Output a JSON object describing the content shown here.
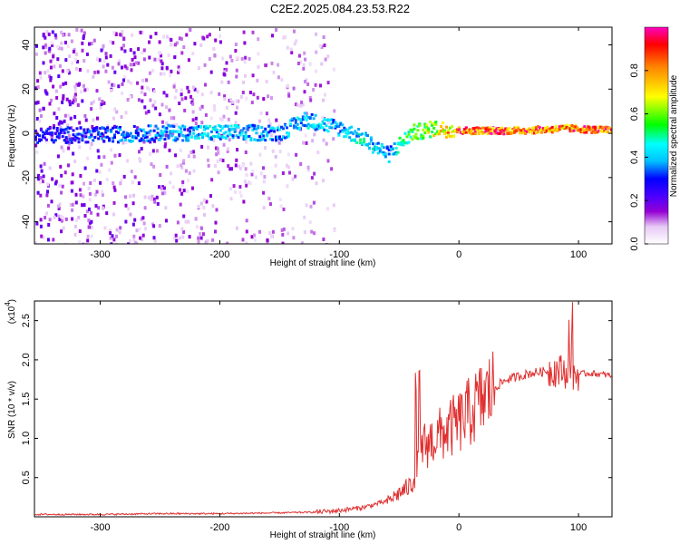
{
  "title": "C2E2.2025.084.23.53.R22",
  "colors": {
    "snr_line": "#e03030",
    "axis": "#000000",
    "background": "#ffffff"
  },
  "chart_data": [
    {
      "type": "heatmap",
      "xlabel": "Height of straight line (km)",
      "ylabel": "Frequency (Hz)",
      "xlim": [
        -355,
        128
      ],
      "ylim": [
        -50,
        48
      ],
      "xticks": [
        -300,
        -200,
        -100,
        0,
        100
      ],
      "yticks": [
        -40,
        -20,
        0,
        20,
        40
      ],
      "colorbar": {
        "label": "Normalized spectral amplitude",
        "ticks": [
          "0.0",
          "0.2",
          "0.4",
          "0.6",
          "0.8"
        ],
        "range": [
          0,
          1
        ]
      },
      "band": [
        {
          "x": -340,
          "freq": -1,
          "amp": 0.3
        },
        {
          "x": -300,
          "freq": -1,
          "amp": 0.35
        },
        {
          "x": -250,
          "freq": 0,
          "amp": 0.4
        },
        {
          "x": -200,
          "freq": 0,
          "amp": 0.45
        },
        {
          "x": -150,
          "freq": 0,
          "amp": 0.4
        },
        {
          "x": -130,
          "freq": 6,
          "amp": 0.45
        },
        {
          "x": -100,
          "freq": 2,
          "amp": 0.4
        },
        {
          "x": -80,
          "freq": -3,
          "amp": 0.5
        },
        {
          "x": -60,
          "freq": -10,
          "amp": 0.4
        },
        {
          "x": -40,
          "freq": 0,
          "amp": 0.6
        },
        {
          "x": -20,
          "freq": 2,
          "amp": 0.7
        },
        {
          "x": 0,
          "freq": 1,
          "amp": 0.95
        },
        {
          "x": 50,
          "freq": 1,
          "amp": 0.95
        },
        {
          "x": 90,
          "freq": 2,
          "amp": 0.9
        },
        {
          "x": 128,
          "freq": 1,
          "amp": 0.95
        }
      ]
    },
    {
      "type": "line",
      "xlabel": "Height of straight line (km)",
      "ylabel": "SNR (10 * v/v)",
      "yscale_label": "(x10",
      "yscale_exp": "4",
      "xlim": [
        -355,
        128
      ],
      "ylim": [
        0,
        2.75
      ],
      "xticks": [
        -300,
        -200,
        -100,
        0,
        100
      ],
      "yticks": [
        "0.5",
        "1.0",
        "1.5",
        "2.0",
        "2.5"
      ],
      "series": [
        {
          "x": [
            -355,
            -300,
            -250,
            -200,
            -150,
            -120,
            -100,
            -80,
            -60,
            -50,
            -40,
            -35,
            -30,
            -25,
            -20,
            -15,
            -10,
            0,
            10,
            20,
            30,
            40,
            60,
            80,
            90,
            95,
            100,
            110,
            128
          ],
          "y": [
            0.03,
            0.03,
            0.04,
            0.04,
            0.05,
            0.06,
            0.08,
            0.12,
            0.2,
            0.3,
            0.4,
            0.6,
            0.9,
            0.95,
            1.0,
            1.05,
            1.1,
            1.2,
            1.35,
            1.5,
            1.65,
            1.75,
            1.83,
            1.87,
            1.85,
            1.8,
            1.82,
            1.83,
            1.8
          ]
        }
      ]
    }
  ]
}
